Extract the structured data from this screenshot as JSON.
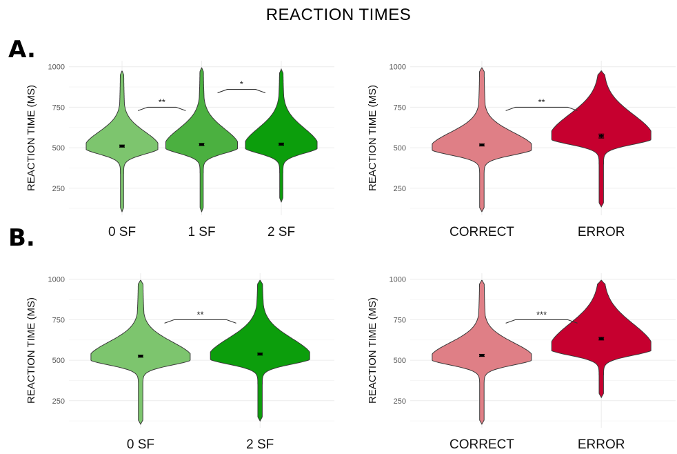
{
  "title": "REACTION TIMES",
  "panel_labels": {
    "a": "A.",
    "b": "B."
  },
  "colors": {
    "sf0": "#7dc56e",
    "sf1": "#4bb040",
    "sf2": "#0c9e0c",
    "correct": "#df7f86",
    "error": "#c6002f",
    "outline": "#3a3a3a",
    "grid": "#ececec"
  },
  "chart_data": [
    {
      "id": "A-left",
      "type": "violin",
      "ylabel": "REACTION TIME (MS)",
      "ylim": [
        100,
        1020
      ],
      "yticks": [
        250,
        500,
        750,
        1000
      ],
      "grid": true,
      "categories": [
        "0 SF",
        "1 SF",
        "2 SF"
      ],
      "series": [
        {
          "color": "sf0",
          "min": 105,
          "max": 975,
          "mean": 510,
          "se": 3,
          "peak": 500,
          "upper_spread": 0.35
        },
        {
          "color": "sf1",
          "min": 105,
          "max": 995,
          "mean": 520,
          "se": 3,
          "peak": 505,
          "upper_spread": 0.5
        },
        {
          "color": "sf2",
          "min": 165,
          "max": 985,
          "mean": 522,
          "se": 3,
          "peak": 505,
          "upper_spread": 0.55
        }
      ],
      "significance": [
        {
          "from": 0,
          "to": 1,
          "label": "**",
          "y": 750
        },
        {
          "from": 1,
          "to": 2,
          "label": "*",
          "y": 860
        }
      ]
    },
    {
      "id": "A-right",
      "type": "violin",
      "ylabel": "REACTION TIME (MS)",
      "ylim": [
        100,
        1020
      ],
      "yticks": [
        250,
        500,
        750,
        1000
      ],
      "grid": true,
      "categories": [
        "CORRECT",
        "ERROR"
      ],
      "series": [
        {
          "color": "correct",
          "min": 105,
          "max": 995,
          "mean": 517,
          "se": 3,
          "peak": 495,
          "upper_spread": 0.35
        },
        {
          "color": "error",
          "min": 135,
          "max": 975,
          "mean": 572,
          "se": 12,
          "peak": 560,
          "upper_spread": 0.9
        }
      ],
      "significance": [
        {
          "from": 0,
          "to": 1,
          "label": "**",
          "y": 750
        }
      ]
    },
    {
      "id": "B-left",
      "type": "violin",
      "ylabel": "REACTION TIME (MS)",
      "ylim": [
        100,
        1020
      ],
      "yticks": [
        250,
        500,
        750,
        1000
      ],
      "grid": true,
      "categories": [
        "0 SF",
        "2 SF"
      ],
      "series": [
        {
          "color": "sf0",
          "min": 105,
          "max": 995,
          "mean": 525,
          "se": 3,
          "peak": 510,
          "upper_spread": 0.4
        },
        {
          "color": "sf2",
          "min": 125,
          "max": 995,
          "mean": 538,
          "se": 3,
          "peak": 515,
          "upper_spread": 0.6
        }
      ],
      "significance": [
        {
          "from": 0,
          "to": 1,
          "label": "**",
          "y": 750
        }
      ]
    },
    {
      "id": "B-right",
      "type": "violin",
      "ylabel": "REACTION TIME (MS)",
      "ylim": [
        100,
        1020
      ],
      "yticks": [
        250,
        500,
        750,
        1000
      ],
      "grid": true,
      "categories": [
        "CORRECT",
        "ERROR"
      ],
      "series": [
        {
          "color": "correct",
          "min": 105,
          "max": 995,
          "mean": 530,
          "se": 3,
          "peak": 510,
          "upper_spread": 0.35
        },
        {
          "color": "error",
          "min": 270,
          "max": 995,
          "mean": 633,
          "se": 8,
          "peak": 570,
          "upper_spread": 1.0
        }
      ],
      "significance": [
        {
          "from": 0,
          "to": 1,
          "label": "***",
          "y": 750
        }
      ]
    }
  ]
}
